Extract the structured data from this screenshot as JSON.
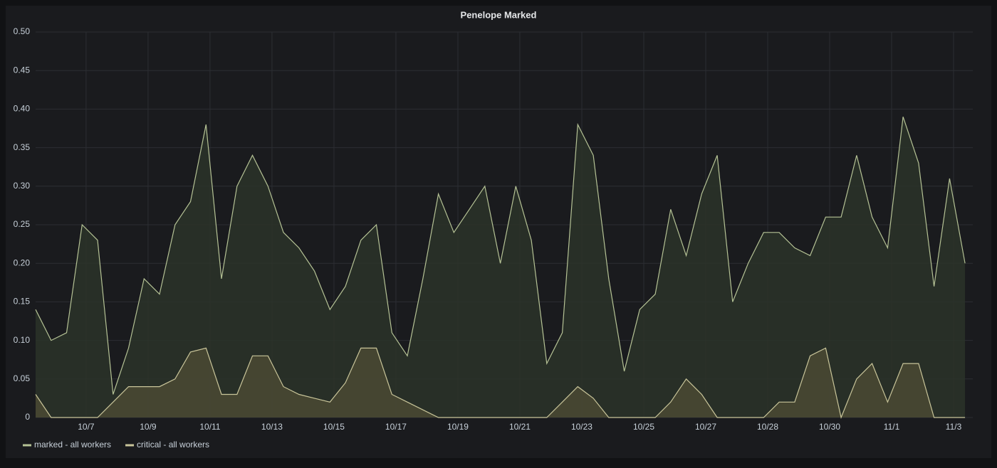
{
  "chart_data": {
    "type": "area",
    "title": "Penelope Marked",
    "x": [
      0,
      0.5,
      1,
      1.5,
      2,
      2.5,
      3,
      3.5,
      4,
      4.5,
      5,
      5.5,
      6,
      6.5,
      7,
      7.5,
      8,
      8.5,
      9,
      9.5,
      10,
      10.5,
      11,
      11.5,
      12,
      12.5,
      13,
      13.5,
      14,
      14.5,
      15,
      15.5,
      16,
      16.5,
      17,
      17.5,
      18,
      18.5,
      19,
      19.5,
      20,
      20.5,
      21,
      21.5,
      22,
      22.5,
      23,
      23.5,
      24,
      24.5,
      25,
      25.5,
      26,
      26.5,
      27,
      27.5,
      28,
      28.5,
      29,
      29.5,
      30
    ],
    "series": [
      {
        "name": "marked - all workers",
        "color": "#b5c295",
        "fill": "#2c3329",
        "values": [
          0.14,
          0.1,
          0.11,
          0.25,
          0.23,
          0.03,
          0.09,
          0.18,
          0.16,
          0.25,
          0.28,
          0.38,
          0.18,
          0.3,
          0.34,
          0.3,
          0.24,
          0.22,
          0.19,
          0.14,
          0.17,
          0.23,
          0.25,
          0.11,
          0.08,
          0.18,
          0.29,
          0.24,
          0.27,
          0.3,
          0.2,
          0.3,
          0.23,
          0.07,
          0.11,
          0.38,
          0.34,
          0.18,
          0.06,
          0.14,
          0.16,
          0.27,
          0.21,
          0.29,
          0.34,
          0.15,
          0.2,
          0.24,
          0.24,
          0.22,
          0.21,
          0.26,
          0.26,
          0.34,
          0.26,
          0.22,
          0.39,
          0.33,
          0.17,
          0.31,
          0.2
        ]
      },
      {
        "name": "critical - all workers",
        "color": "#c9c59a",
        "fill": "#4a4934",
        "values": [
          0.03,
          0,
          0,
          0,
          0,
          0.02,
          0.04,
          0.04,
          0.04,
          0.05,
          0.085,
          0.09,
          0.03,
          0.03,
          0.08,
          0.08,
          0.04,
          0.03,
          0.025,
          0.02,
          0.045,
          0.09,
          0.09,
          0.03,
          0.02,
          0.01,
          0,
          0,
          0,
          0,
          0,
          0,
          0,
          0,
          0.02,
          0.04,
          0.025,
          0,
          0,
          0,
          0,
          0.02,
          0.05,
          0.03,
          0,
          0,
          0,
          0,
          0.02,
          0.02,
          0.08,
          0.09,
          0,
          0.05,
          0.07,
          0.02,
          0.07,
          0.07,
          0,
          0,
          0
        ]
      }
    ],
    "xlim": [
      0,
      30.25
    ],
    "xticks": [
      {
        "value": 1.63,
        "label": "10/7"
      },
      {
        "value": 3.63,
        "label": "10/9"
      },
      {
        "value": 5.63,
        "label": "10/11"
      },
      {
        "value": 7.63,
        "label": "10/13"
      },
      {
        "value": 9.63,
        "label": "10/15"
      },
      {
        "value": 11.63,
        "label": "10/17"
      },
      {
        "value": 13.63,
        "label": "10/19"
      },
      {
        "value": 15.63,
        "label": "10/21"
      },
      {
        "value": 17.63,
        "label": "10/23"
      },
      {
        "value": 19.63,
        "label": "10/25"
      },
      {
        "value": 21.63,
        "label": "10/27"
      },
      {
        "value": 23.63,
        "label": "10/28"
      },
      {
        "value": 25.63,
        "label": "10/30"
      },
      {
        "value": 27.63,
        "label": "11/1"
      },
      {
        "value": 29.63,
        "label": "11/3"
      }
    ],
    "ylim": [
      0,
      0.5
    ],
    "yticks": [
      0,
      {
        "value": 0.05,
        "label": "0.05"
      },
      {
        "value": 0.1,
        "label": "0.10"
      },
      {
        "value": 0.15,
        "label": "0.15"
      },
      {
        "value": 0.2,
        "label": "0.20"
      },
      {
        "value": 0.25,
        "label": "0.25"
      },
      {
        "value": 0.3,
        "label": "0.30"
      },
      {
        "value": 0.35,
        "label": "0.35"
      },
      {
        "value": 0.4,
        "label": "0.40"
      },
      {
        "value": 0.45,
        "label": "0.45"
      },
      {
        "value": 0.5,
        "label": "0.50"
      }
    ],
    "grid": true
  }
}
